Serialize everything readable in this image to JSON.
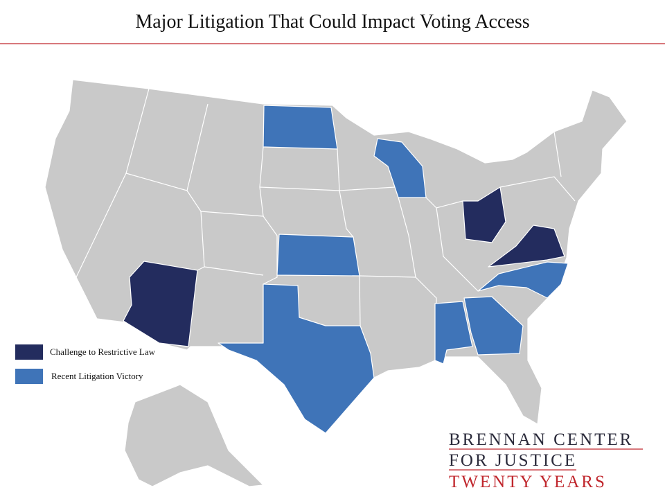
{
  "title": "Major Litigation That Could Impact Voting Access",
  "legend": [
    {
      "label": "Challenge to Restrictive Law",
      "color": "#232c5e"
    },
    {
      "label": "Recent Litigation Victory",
      "color": "#3f74b8"
    }
  ],
  "logo": {
    "lines": [
      "BRENNAN CENTER",
      "FOR JUSTICE",
      "TWENTY YEARS"
    ]
  }
}
